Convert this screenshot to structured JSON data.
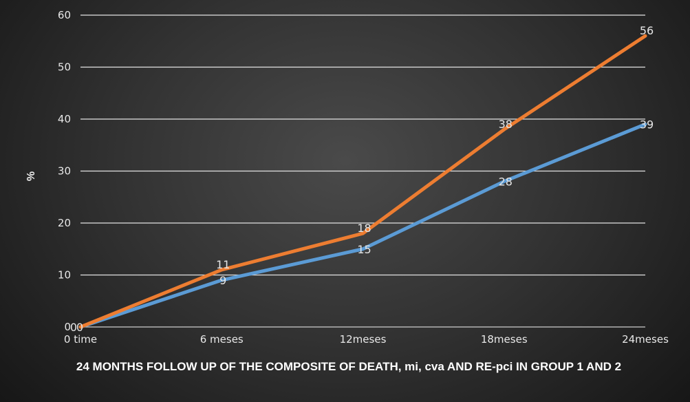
{
  "chart_data": {
    "type": "line",
    "title": "24 MONTHS FOLLOW UP OF THE COMPOSITE OF DEATH, mi, cva AND RE-pci IN GROUP 1 AND 2",
    "xlabel": "",
    "ylabel": "%",
    "categories": [
      "0 time",
      "6 meses",
      "12meses",
      "18meses",
      "24meses"
    ],
    "ylim": [
      0,
      60
    ],
    "yticks": [
      "0",
      "10",
      "20",
      "30",
      "40",
      "50",
      "60"
    ],
    "grid": true,
    "legend": "none",
    "series": [
      {
        "values": [
          0,
          9,
          15,
          28,
          39
        ],
        "labels": [
          "0",
          "9",
          "15",
          "28",
          "39"
        ],
        "color": "#5b9bd5"
      },
      {
        "values": [
          0,
          11,
          18,
          38,
          56
        ],
        "labels": [
          "0",
          "11",
          "18",
          "38",
          "56"
        ],
        "color": "#ed7d31"
      }
    ]
  }
}
